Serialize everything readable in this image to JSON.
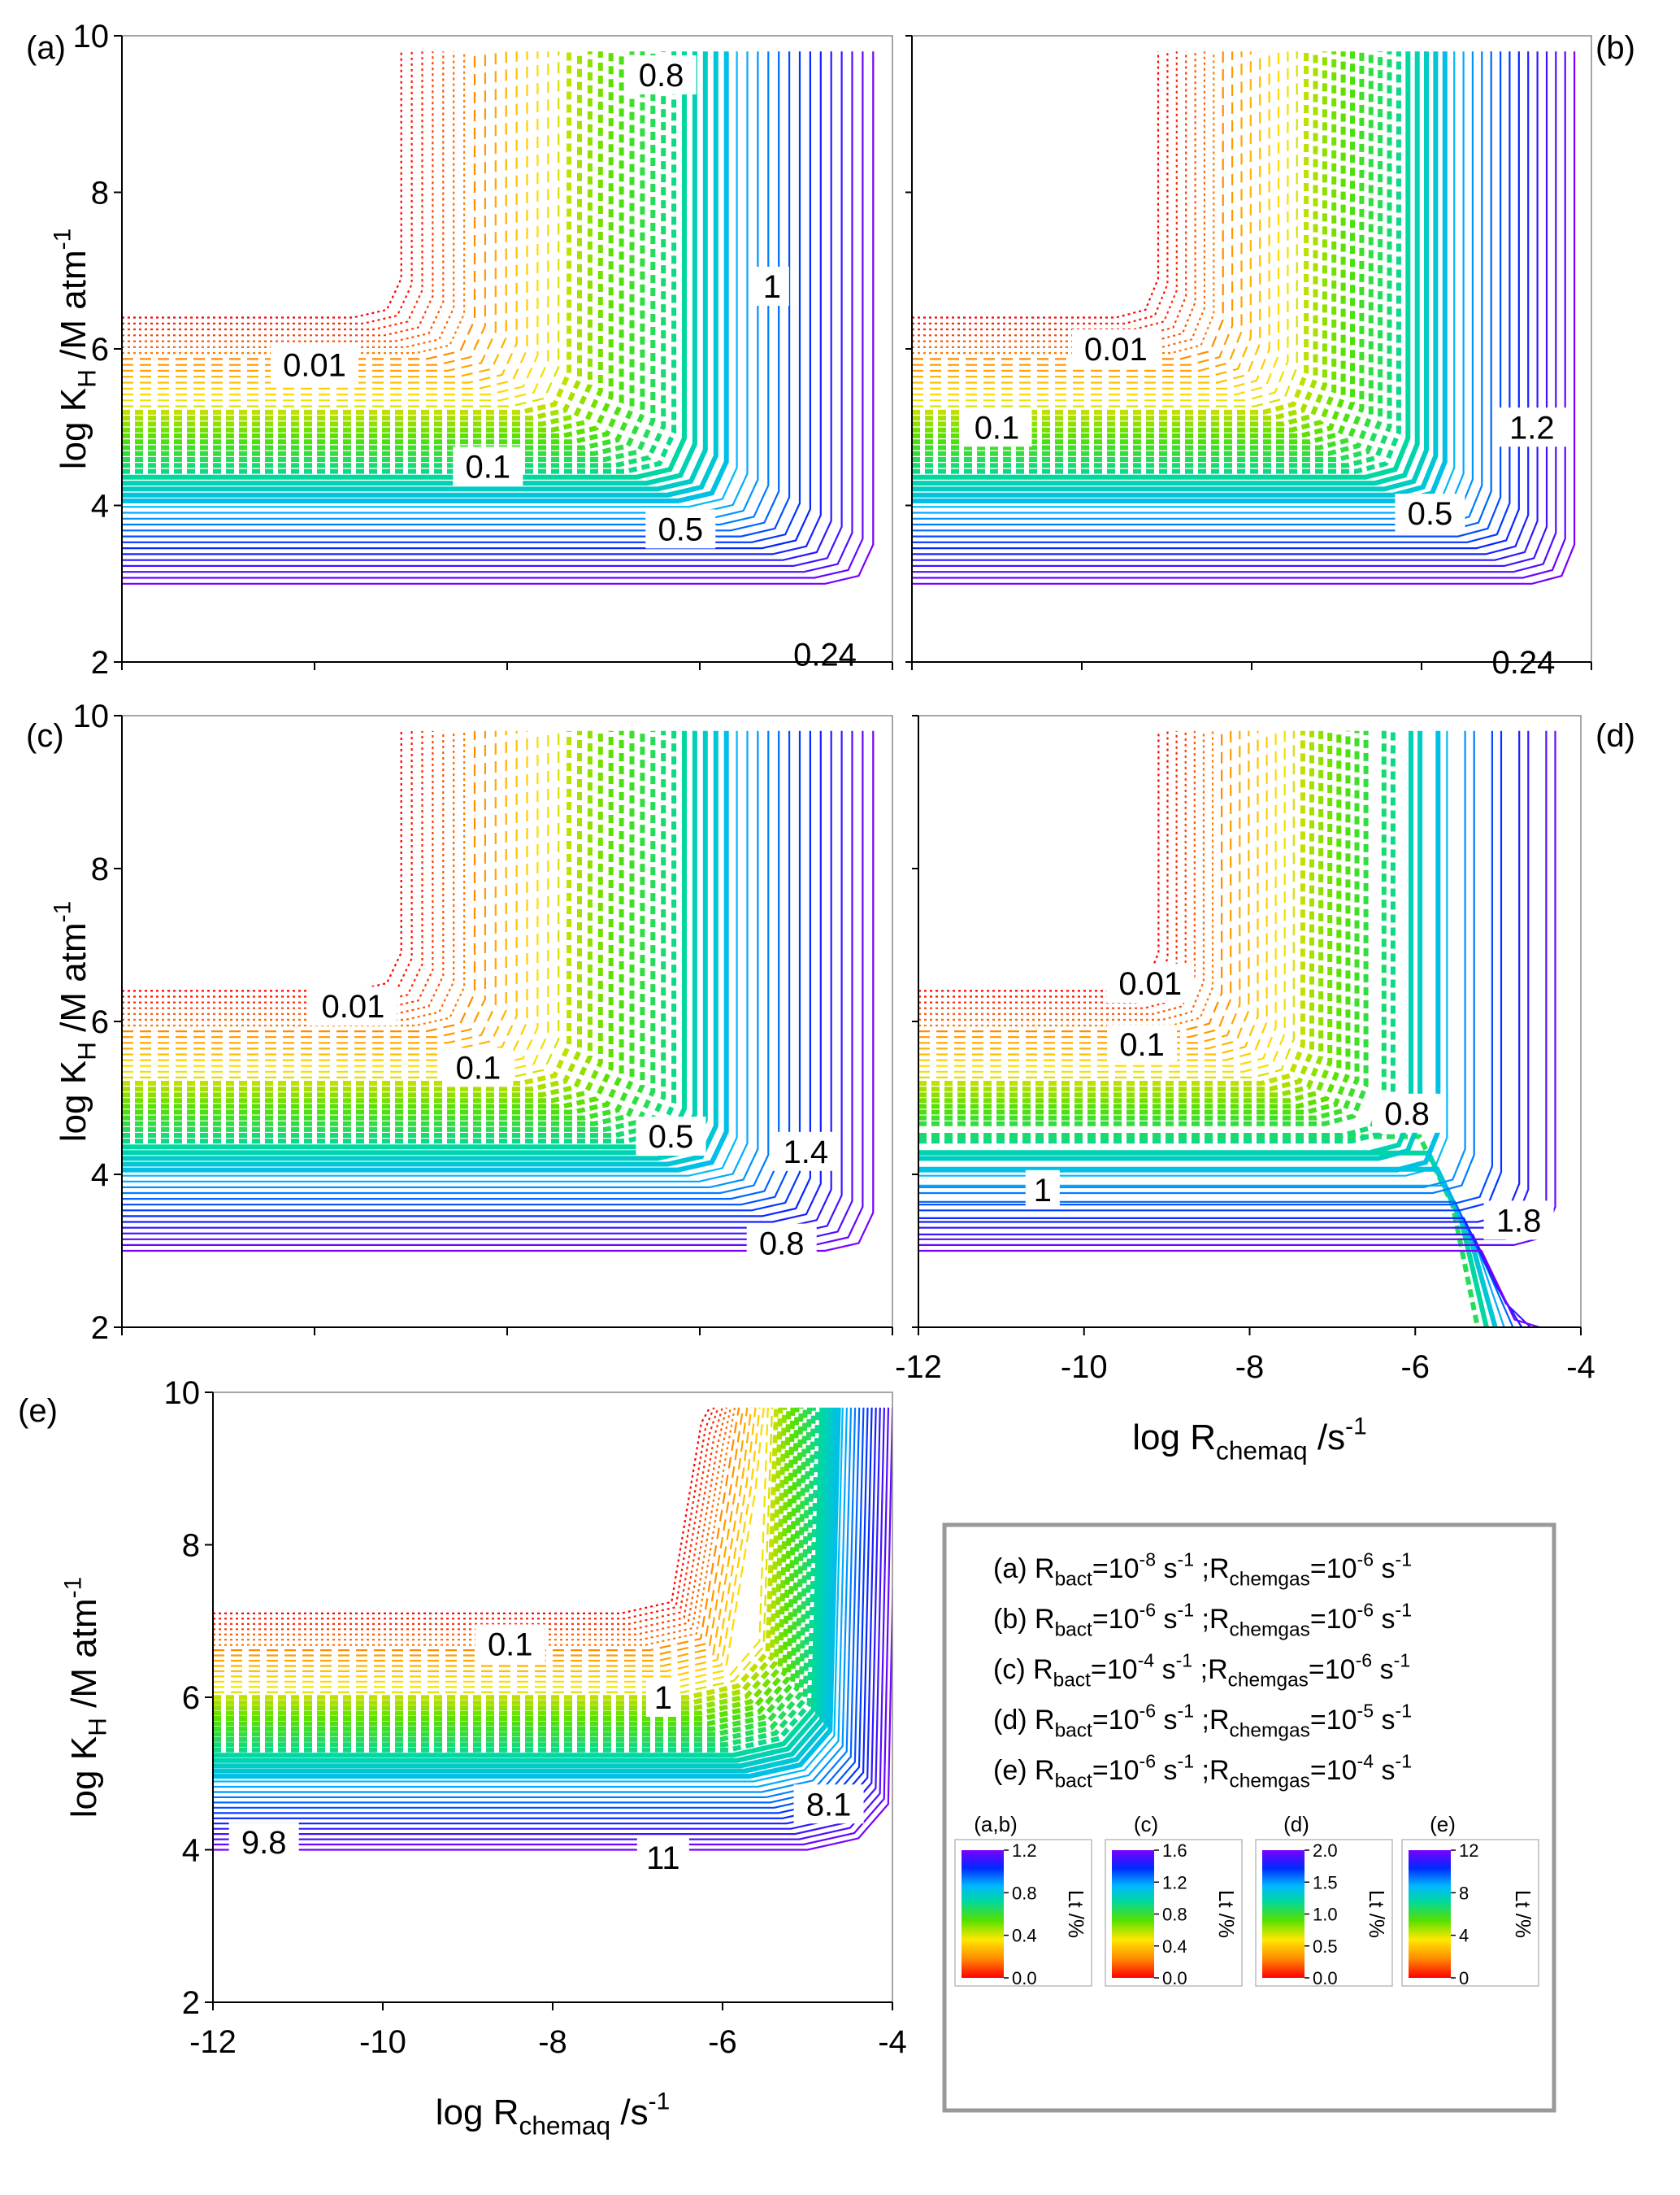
{
  "chart_data": {
    "type": "contour",
    "xlabel": {
      "main": "log R",
      "sub": "chemaq",
      "tail": " /s",
      "sup": "-1"
    },
    "ylabel": {
      "main": "log K",
      "sub": "H",
      "tail": " /M atm",
      "sup": "-1"
    },
    "xlim": [
      -12,
      -4
    ],
    "ylim": [
      2,
      10
    ],
    "xticks": [
      "-12",
      "-10",
      "-8",
      "-6",
      "-4"
    ],
    "yticks": [
      "2",
      "4",
      "6",
      "8",
      "10"
    ],
    "panels": [
      {
        "id": "a",
        "label": "(a)",
        "contour_labels": [
          {
            "text": "0.8",
            "x": -6.4,
            "y": 9.5
          },
          {
            "text": "1",
            "x": -5.25,
            "y": 6.8
          },
          {
            "text": "0.01",
            "x": -10.0,
            "y": 5.8
          },
          {
            "text": "0.1",
            "x": -8.2,
            "y": 4.5
          },
          {
            "text": "0.5",
            "x": -6.2,
            "y": 3.7
          },
          {
            "text": "0.24",
            "x": -4.7,
            "y": 2.1
          }
        ]
      },
      {
        "id": "b",
        "label": "(b)",
        "contour_labels": [
          {
            "text": "0.01",
            "x": -9.6,
            "y": 6.0
          },
          {
            "text": "0.1",
            "x": -11.0,
            "y": 5.0
          },
          {
            "text": "1.2",
            "x": -4.7,
            "y": 5.0
          },
          {
            "text": "0.5",
            "x": -5.9,
            "y": 3.9
          },
          {
            "text": "0.24",
            "x": -4.8,
            "y": 2.0
          }
        ]
      },
      {
        "id": "c",
        "label": "(c)",
        "contour_labels": [
          {
            "text": "0.01",
            "x": -9.6,
            "y": 6.2
          },
          {
            "text": "0.1",
            "x": -8.3,
            "y": 5.4
          },
          {
            "text": "0.5",
            "x": -6.3,
            "y": 4.5
          },
          {
            "text": "1.4",
            "x": -4.9,
            "y": 4.3
          },
          {
            "text": "0.8",
            "x": -5.15,
            "y": 3.1
          }
        ]
      },
      {
        "id": "d",
        "label": "(d)",
        "contour_labels": [
          {
            "text": "0.01",
            "x": -9.2,
            "y": 6.5
          },
          {
            "text": "0.1",
            "x": -9.3,
            "y": 5.7
          },
          {
            "text": "0.8",
            "x": -6.1,
            "y": 4.8
          },
          {
            "text": "1",
            "x": -10.5,
            "y": 3.8
          },
          {
            "text": "1.8",
            "x": -4.75,
            "y": 3.4
          }
        ]
      },
      {
        "id": "e",
        "label": "(e)",
        "contour_labels": [
          {
            "text": "0.1",
            "x": -8.5,
            "y": 6.7
          },
          {
            "text": "1",
            "x": -6.7,
            "y": 6.0
          },
          {
            "text": "9.8",
            "x": -11.4,
            "y": 4.1
          },
          {
            "text": "8.1",
            "x": -4.75,
            "y": 4.6
          },
          {
            "text": "11",
            "x": -6.7,
            "y": 3.9
          }
        ]
      }
    ],
    "legend": {
      "entries": [
        {
          "p": "(a) R",
          "rb": "bact",
          "e1": "-8",
          "rc": "chemgas",
          "e2": "-6"
        },
        {
          "p": "(b) R",
          "rb": "bact",
          "e1": "-6",
          "rc": "chemgas",
          "e2": "-6"
        },
        {
          "p": "(c) R",
          "rb": "bact",
          "e1": "-4",
          "rc": "chemgas",
          "e2": "-6"
        },
        {
          "p": "(d) R",
          "rb": "bact",
          "e1": "-6",
          "rc": "chemgas",
          "e2": "-5"
        },
        {
          "p": "(e) R",
          "rb": "bact",
          "e1": "-6",
          "rc": "chemgas",
          "e2": "-4"
        }
      ],
      "unit_s": " s",
      "placement": "bottom-right"
    },
    "colorbars": [
      {
        "title": "(a,b)",
        "ticks": [
          "1.2",
          "0.8",
          "0.4",
          "0.0"
        ],
        "max": 1.2
      },
      {
        "title": "(c)",
        "ticks": [
          "1.6",
          "1.2",
          "0.8",
          "0.4",
          "0.0"
        ],
        "max": 1.6
      },
      {
        "title": "(d)",
        "ticks": [
          "2.0",
          "1.5",
          "1.0",
          "0.5",
          "0.0"
        ],
        "max": 2.0
      },
      {
        "title": "(e)",
        "ticks": [
          "12",
          "8",
          "4",
          "0"
        ],
        "max": 12
      }
    ],
    "colorbar_label": "Lt /%"
  }
}
